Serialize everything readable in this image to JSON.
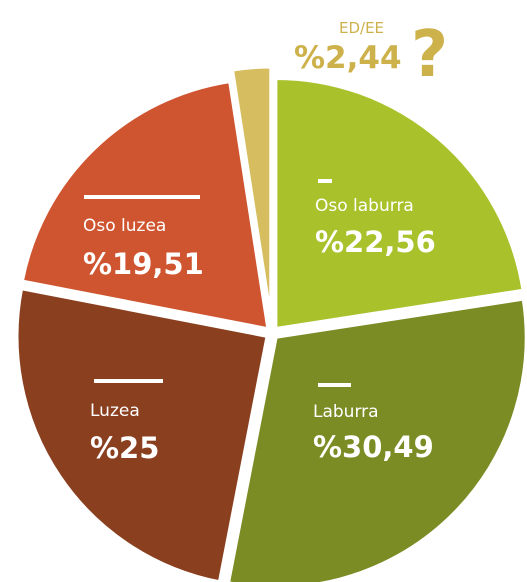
{
  "chart_data": {
    "type": "pie",
    "categories": [
      "Oso laburra",
      "Laburra",
      "Luzea",
      "Oso luzea",
      "ED/EE"
    ],
    "values": [
      22.56,
      30.49,
      25,
      19.51,
      2.44
    ],
    "value_labels": [
      "%22,56",
      "%30,49",
      "%25",
      "%19,51",
      "%2,44"
    ],
    "colors": [
      "#a9c22c",
      "#7b8c25",
      "#8a3f1f",
      "#cf5530",
      "#d6bd5f"
    ],
    "annotation": "?"
  }
}
